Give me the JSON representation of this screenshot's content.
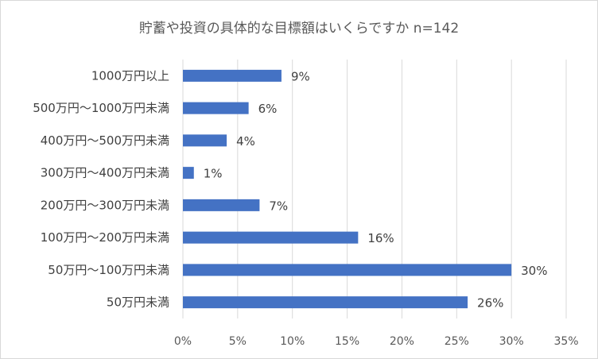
{
  "chart_data": {
    "type": "bar",
    "orientation": "horizontal",
    "title": "貯蓄や投資の具体的な目標額はいくらですか n=142",
    "categories": [
      "1000万円以上",
      "500万円～1000万円未満",
      "400万円～500万円未満",
      "300万円～400万円未満",
      "200万円～300万円未満",
      "100万円～200万円未満",
      "50万円～100万円未満",
      "50万円未満"
    ],
    "values": [
      9,
      6,
      4,
      1,
      7,
      16,
      30,
      26
    ],
    "data_labels": [
      "9%",
      "6%",
      "4%",
      "1%",
      "7%",
      "16%",
      "30%",
      "26%"
    ],
    "xlim": [
      0,
      35
    ],
    "xticks": [
      "0%",
      "5%",
      "10%",
      "15%",
      "20%",
      "25%",
      "30%",
      "35%"
    ],
    "grid": "vertical",
    "legend": "none",
    "bar_color": "#4472c4",
    "grid_color": "#d9d9d9"
  }
}
